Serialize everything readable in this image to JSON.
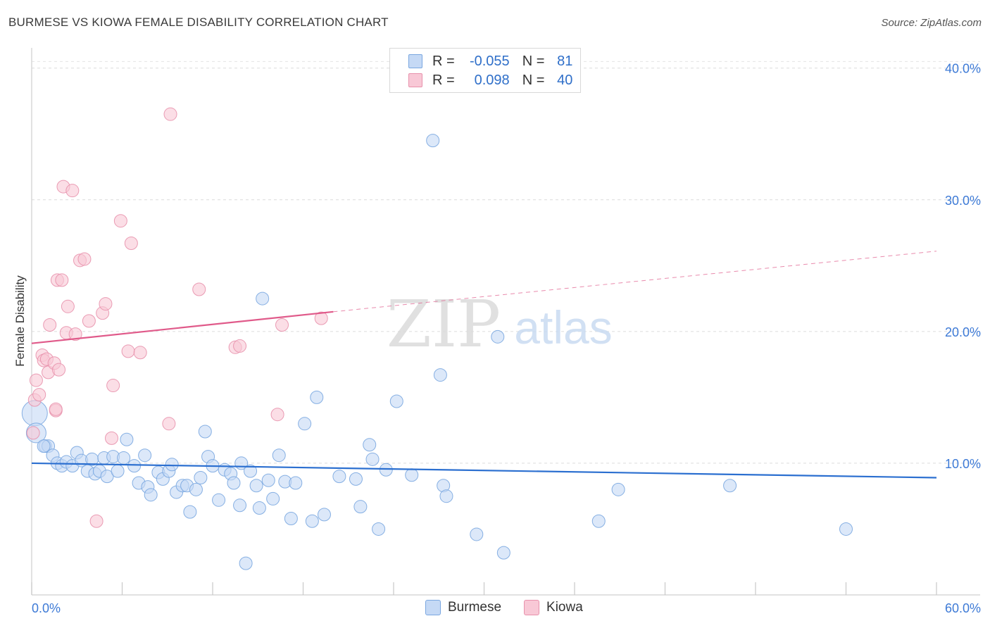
{
  "title": "BURMESE VS KIOWA FEMALE DISABILITY CORRELATION CHART",
  "source": "Source: ZipAtlas.com",
  "watermark_zip": "ZIP",
  "watermark_atlas": "atlas",
  "legend": {
    "rows": [
      {
        "r_label": "R =",
        "r_value": "-0.055",
        "n_label": "N =",
        "n_value": "81",
        "fill": "#c5d9f5",
        "stroke": "#7aa7e0"
      },
      {
        "r_label": "R =",
        "r_value": "0.098",
        "n_label": "N =",
        "n_value": "40",
        "fill": "#f8c8d6",
        "stroke": "#e891ac"
      }
    ]
  },
  "bottom_legend": {
    "series1": "Burmese",
    "series2": "Kiowa"
  },
  "chart_data": {
    "type": "scatter",
    "title": "BURMESE VS KIOWA FEMALE DISABILITY CORRELATION CHART",
    "xlabel": "",
    "ylabel": "Female Disability",
    "xlim": [
      0,
      60
    ],
    "ylim": [
      0,
      41
    ],
    "x_tick_labels": [
      "0.0%",
      "60.0%"
    ],
    "y_ticks": [
      10,
      20,
      30,
      40
    ],
    "y_tick_labels": [
      "10.0%",
      "20.0%",
      "30.0%",
      "40.0%"
    ],
    "grid": true,
    "series": [
      {
        "name": "Burmese",
        "color": "#7aa7e0",
        "fill": "#c5d9f5",
        "trend": {
          "x0": 0,
          "y0": 10.0,
          "x1": 60,
          "y1": 8.9,
          "color": "#2b6fd0"
        },
        "points": [
          [
            0.2,
            13.8
          ],
          [
            0.3,
            12.3
          ],
          [
            0.9,
            11.3
          ],
          [
            1.1,
            11.3
          ],
          [
            1.4,
            10.6
          ],
          [
            1.7,
            10.0
          ],
          [
            2.0,
            9.8
          ],
          [
            2.3,
            10.1
          ],
          [
            2.7,
            9.8
          ],
          [
            3.0,
            10.8
          ],
          [
            3.3,
            10.2
          ],
          [
            3.7,
            9.4
          ],
          [
            4.0,
            10.3
          ],
          [
            4.2,
            9.2
          ],
          [
            4.5,
            9.4
          ],
          [
            4.8,
            10.4
          ],
          [
            5.0,
            9.0
          ],
          [
            5.4,
            10.5
          ],
          [
            5.7,
            9.4
          ],
          [
            6.1,
            10.4
          ],
          [
            6.3,
            11.8
          ],
          [
            6.8,
            9.8
          ],
          [
            7.1,
            8.5
          ],
          [
            7.5,
            10.6
          ],
          [
            7.7,
            8.2
          ],
          [
            7.9,
            7.6
          ],
          [
            8.4,
            9.3
          ],
          [
            8.7,
            8.8
          ],
          [
            9.1,
            9.4
          ],
          [
            9.3,
            9.9
          ],
          [
            9.6,
            7.8
          ],
          [
            10.0,
            8.3
          ],
          [
            10.3,
            8.3
          ],
          [
            10.5,
            6.3
          ],
          [
            10.9,
            8.0
          ],
          [
            11.2,
            8.9
          ],
          [
            11.5,
            12.4
          ],
          [
            11.7,
            10.5
          ],
          [
            12.0,
            9.8
          ],
          [
            12.4,
            7.2
          ],
          [
            12.8,
            9.5
          ],
          [
            13.2,
            9.2
          ],
          [
            13.4,
            8.5
          ],
          [
            13.8,
            6.8
          ],
          [
            13.9,
            10.0
          ],
          [
            14.2,
            2.4
          ],
          [
            14.5,
            9.4
          ],
          [
            14.9,
            8.3
          ],
          [
            15.1,
            6.6
          ],
          [
            15.3,
            22.5
          ],
          [
            15.7,
            8.7
          ],
          [
            16.0,
            7.3
          ],
          [
            16.4,
            10.6
          ],
          [
            16.8,
            8.6
          ],
          [
            17.2,
            5.8
          ],
          [
            17.5,
            8.5
          ],
          [
            18.1,
            13.0
          ],
          [
            18.6,
            5.6
          ],
          [
            18.9,
            15.0
          ],
          [
            19.4,
            6.1
          ],
          [
            20.4,
            9.0
          ],
          [
            21.5,
            8.8
          ],
          [
            21.8,
            6.7
          ],
          [
            22.4,
            11.4
          ],
          [
            22.6,
            10.3
          ],
          [
            23.0,
            5.0
          ],
          [
            23.5,
            9.5
          ],
          [
            24.2,
            14.7
          ],
          [
            25.2,
            9.1
          ],
          [
            26.6,
            34.5
          ],
          [
            27.1,
            16.7
          ],
          [
            27.3,
            8.3
          ],
          [
            27.5,
            7.5
          ],
          [
            29.5,
            4.6
          ],
          [
            30.9,
            19.6
          ],
          [
            31.3,
            3.2
          ],
          [
            37.6,
            5.6
          ],
          [
            38.9,
            8.0
          ],
          [
            46.3,
            8.3
          ],
          [
            54.0,
            5.0
          ],
          [
            0.8,
            11.3
          ]
        ],
        "sizes": [
          18,
          14,
          9,
          9,
          9,
          9,
          9,
          9,
          9,
          9,
          9,
          9,
          9,
          9,
          9,
          9,
          9,
          9,
          9,
          9,
          9,
          9,
          9,
          9,
          9,
          9,
          9,
          9,
          9,
          9,
          9,
          9,
          9,
          9,
          9,
          9,
          9,
          9,
          9,
          9,
          9,
          9,
          9,
          9,
          9,
          9,
          9,
          9,
          9,
          9,
          9,
          9,
          9,
          9,
          9,
          9,
          9,
          9,
          9,
          9,
          9,
          9,
          9,
          9,
          9,
          9,
          9,
          9,
          9,
          9,
          9,
          9,
          9,
          9,
          9,
          9,
          9,
          9,
          9,
          9,
          9
        ]
      },
      {
        "name": "Kiowa",
        "color": "#e891ac",
        "fill": "#f8c8d6",
        "trend": {
          "x0": 0,
          "y0": 19.1,
          "x1": 20.0,
          "y1": 21.5,
          "dash_x1": 60,
          "dash_y1": 26.1,
          "color": "#e05a8a"
        },
        "points": [
          [
            0.1,
            12.3
          ],
          [
            0.2,
            14.8
          ],
          [
            0.3,
            16.3
          ],
          [
            0.5,
            15.2
          ],
          [
            0.7,
            18.2
          ],
          [
            0.8,
            17.8
          ],
          [
            1.0,
            17.9
          ],
          [
            1.1,
            16.9
          ],
          [
            1.2,
            20.5
          ],
          [
            1.5,
            17.6
          ],
          [
            1.6,
            14.0
          ],
          [
            1.7,
            23.9
          ],
          [
            1.8,
            17.1
          ],
          [
            2.0,
            23.9
          ],
          [
            2.1,
            31.0
          ],
          [
            2.3,
            19.9
          ],
          [
            2.4,
            21.9
          ],
          [
            2.7,
            30.7
          ],
          [
            2.9,
            19.8
          ],
          [
            3.2,
            25.4
          ],
          [
            3.5,
            25.5
          ],
          [
            3.8,
            20.8
          ],
          [
            4.3,
            5.6
          ],
          [
            4.7,
            21.4
          ],
          [
            4.9,
            22.1
          ],
          [
            5.3,
            11.9
          ],
          [
            5.4,
            15.9
          ],
          [
            5.9,
            28.4
          ],
          [
            6.4,
            18.5
          ],
          [
            6.6,
            26.7
          ],
          [
            7.2,
            18.4
          ],
          [
            9.1,
            13.0
          ],
          [
            9.2,
            36.5
          ],
          [
            11.1,
            23.2
          ],
          [
            13.5,
            18.8
          ],
          [
            13.8,
            18.9
          ],
          [
            16.3,
            13.7
          ],
          [
            16.6,
            20.5
          ],
          [
            19.2,
            21.0
          ],
          [
            1.6,
            14.1
          ]
        ],
        "sizes": [
          9,
          9,
          9,
          9,
          9,
          9,
          9,
          9,
          9,
          9,
          9,
          9,
          9,
          9,
          9,
          9,
          9,
          9,
          9,
          9,
          9,
          9,
          9,
          9,
          9,
          9,
          9,
          9,
          9,
          9,
          9,
          9,
          9,
          9,
          9,
          9,
          9,
          9,
          9,
          9
        ]
      }
    ]
  }
}
